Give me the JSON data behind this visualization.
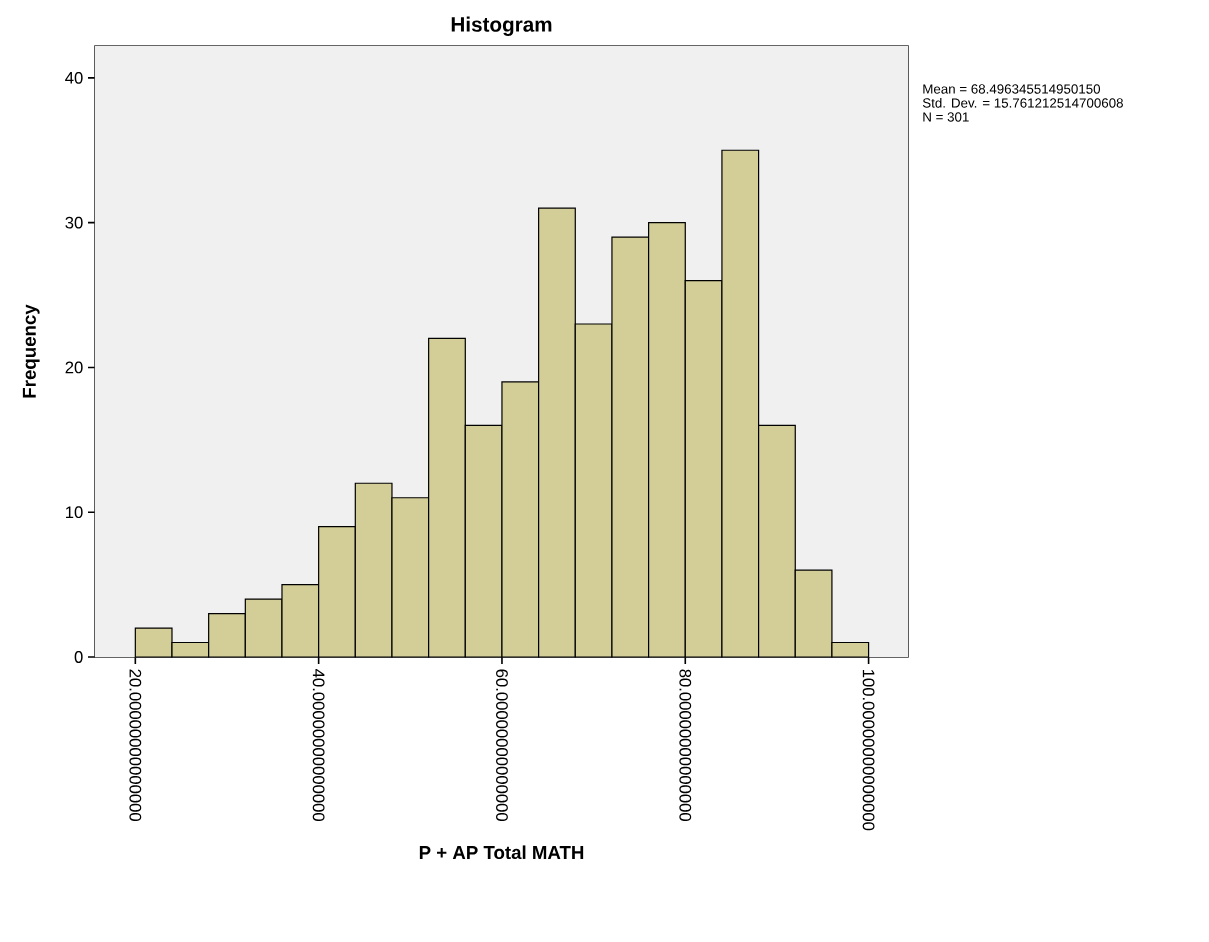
{
  "chart_data": {
    "type": "histogram",
    "title": "Histogram",
    "xlabel": "P + AP Total MATH",
    "ylabel": "Frequency",
    "bins": [
      20,
      24,
      28,
      32,
      36,
      40,
      44,
      48,
      52,
      56,
      60,
      64,
      68,
      72,
      76,
      80,
      84,
      88,
      92,
      96,
      100
    ],
    "values": [
      2,
      1,
      3,
      4,
      5,
      9,
      12,
      11,
      22,
      16,
      19,
      31,
      23,
      29,
      30,
      26,
      35,
      16,
      6,
      1
    ],
    "color": "#d3ce97",
    "xlim": [
      15.6,
      104.3
    ],
    "ylim": [
      0,
      42.2
    ],
    "xticks": [
      {
        "value": 20,
        "label": "20.00000000000000"
      },
      {
        "value": 40,
        "label": "40.00000000000000"
      },
      {
        "value": 60,
        "label": "60.00000000000000"
      },
      {
        "value": 80,
        "label": "80.00000000000000"
      },
      {
        "value": 100,
        "label": "100.00000000000000"
      }
    ],
    "yticks": [
      0,
      10,
      20,
      30,
      40
    ],
    "annotations": [
      "Mean = 68.496345514950150",
      "Std. Dev. = 15.761212514700608",
      "N = 301"
    ]
  }
}
